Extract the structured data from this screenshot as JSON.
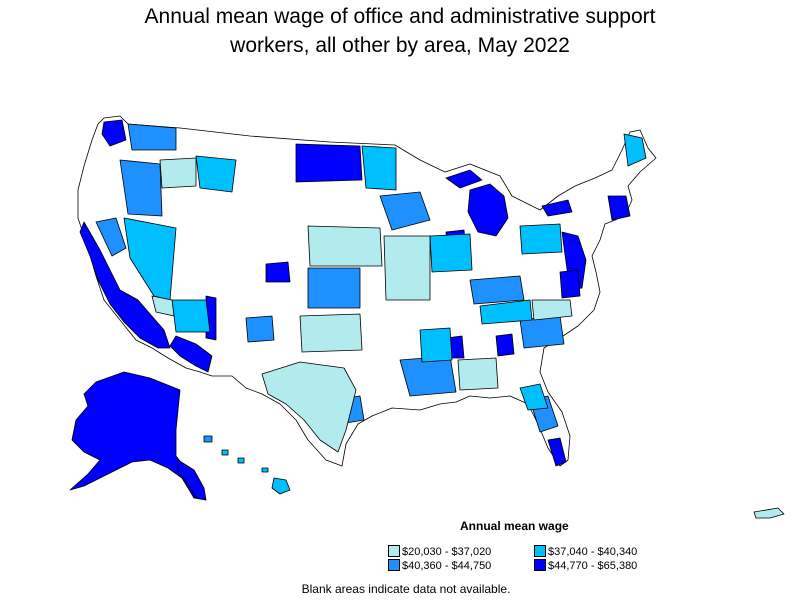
{
  "title_line1": "Annual mean wage of office and administrative support",
  "title_line2": "workers, all other by area, May 2022",
  "legend": {
    "title": "Annual mean wage",
    "items": [
      {
        "label": "$20,030 - $37,020",
        "color": "#b2ebee"
      },
      {
        "label": "$37,040 - $40,340",
        "color": "#00bfff"
      },
      {
        "label": "$40,360 - $44,750",
        "color": "#1e90ff"
      },
      {
        "label": "$44,770 - $65,380",
        "color": "#0000ff"
      }
    ]
  },
  "footnote": "Blank areas indicate data not available.",
  "colors": {
    "no_data": "#ffffff",
    "border": "#000000",
    "class1": "#b2ebee",
    "class2": "#00bfff",
    "class3": "#1e90ff",
    "class4": "#0000ff"
  }
}
